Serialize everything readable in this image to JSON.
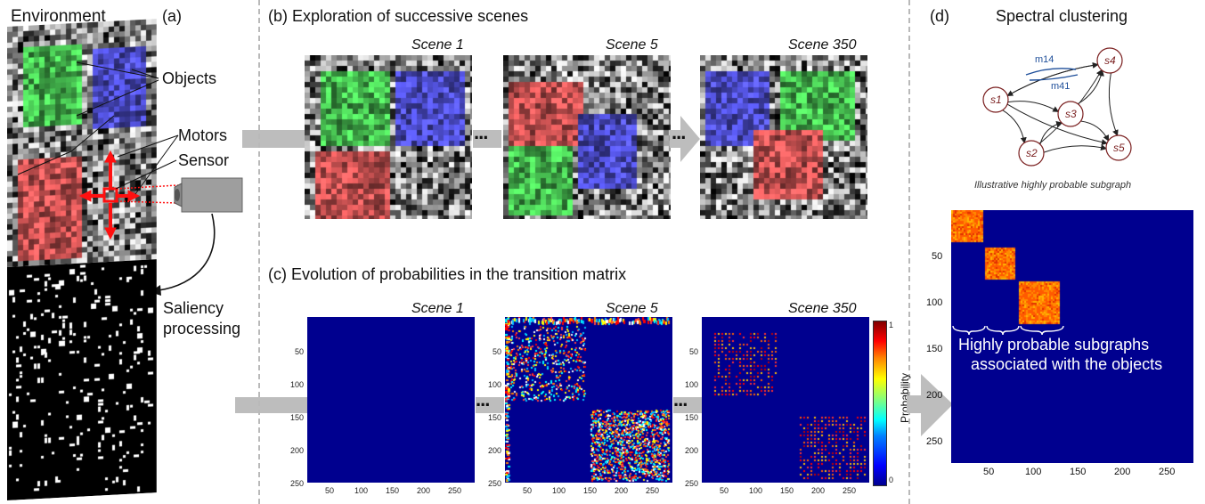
{
  "panel_a": {
    "letter": "(a)",
    "environment_label": "Environment",
    "objects_label": "Objects",
    "motors_label": "Motors",
    "sensor_label": "Sensor",
    "saliency_label_line1": "Saliency",
    "saliency_label_line2": "processing"
  },
  "panel_b": {
    "title": "(b)  Exploration of successive scenes",
    "scenes": [
      "Scene 1",
      "Scene 5",
      "Scene 350"
    ]
  },
  "panel_c": {
    "title": "(c)  Evolution of probabilities in the transition matrix",
    "scenes": [
      "Scene 1",
      "Scene 5",
      "Scene 350"
    ],
    "y_ticks": [
      "50",
      "100",
      "150",
      "200",
      "250"
    ],
    "x_ticks": [
      "50",
      "100",
      "150",
      "200",
      "250"
    ],
    "colorbar": {
      "label": "Probability",
      "max": "1",
      "min": "0"
    }
  },
  "panel_d": {
    "letter": "(d)",
    "title": "Spectral clustering",
    "graph_caption": "Illustrative highly probable subgraph",
    "nodes": [
      "s1",
      "s2",
      "s3",
      "s4",
      "s5"
    ],
    "edge_label_1": "m14",
    "edge_label_2": "m41",
    "y_ticks": [
      "50",
      "100",
      "150",
      "200",
      "250"
    ],
    "x_ticks": [
      "50",
      "100",
      "150",
      "200",
      "250"
    ],
    "annotation_line1": "Highly probable subgraphs",
    "annotation_line2": "associated with the objects"
  },
  "ellipsis": "...",
  "colors": {
    "green_object": "#4fd45a",
    "blue_object": "#5656e6",
    "red_object": "#e25c5c",
    "matrix_background": "#00008f",
    "arrow_gray": "#bdbdbd",
    "node_stroke": "#7a1f1f"
  }
}
